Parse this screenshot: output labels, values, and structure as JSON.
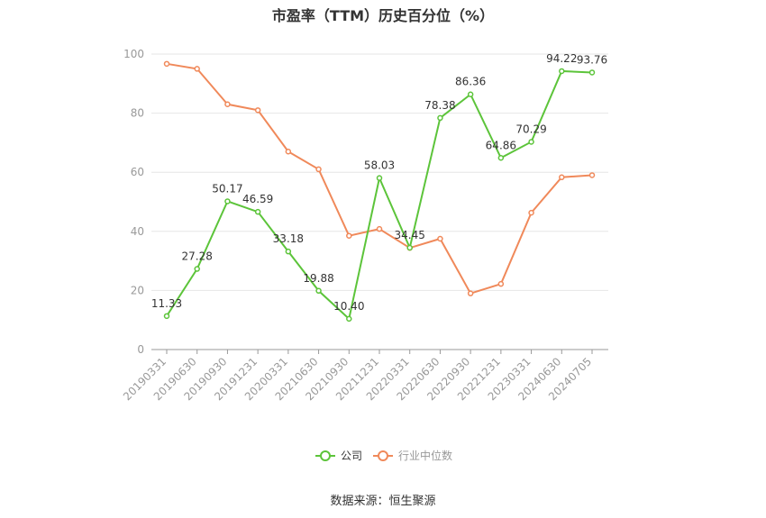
{
  "chart_data": {
    "type": "line",
    "title": "市盈率（TTM）历史百分位（%）",
    "source": "数据来源：恒生聚源",
    "categories": [
      "20190331",
      "20190630",
      "20190930",
      "20191231",
      "20200331",
      "20210630",
      "20210930",
      "20211231",
      "20220331",
      "20220630",
      "20220930",
      "20221231",
      "20230331",
      "20240630",
      "20240705"
    ],
    "ylim": [
      0,
      100
    ],
    "yticks": [
      "0",
      "20",
      "40",
      "60",
      "80",
      "100"
    ],
    "grid": true,
    "legend_position": "bottom",
    "series": [
      {
        "name": "公司",
        "color": "#5cc43a",
        "values": [
          11.33,
          27.28,
          50.17,
          46.59,
          33.18,
          19.88,
          10.4,
          58.03,
          34.45,
          78.38,
          86.36,
          64.86,
          70.29,
          94.22,
          93.76
        ],
        "labels": [
          "11.33",
          "27.28",
          "50.17",
          "46.59",
          "33.18",
          "19.88",
          "10.40",
          "58.03",
          "34.45",
          "78.38",
          "86.36",
          "64.86",
          "70.29",
          "94.22",
          "93.76"
        ]
      },
      {
        "name": "行业中位数",
        "color": "#f0895a",
        "values": [
          96.7,
          95.0,
          83.0,
          81.0,
          67.0,
          61.0,
          38.5,
          40.8,
          34.4,
          37.5,
          19.0,
          22.2,
          46.3,
          58.3,
          59.0
        ]
      }
    ]
  }
}
